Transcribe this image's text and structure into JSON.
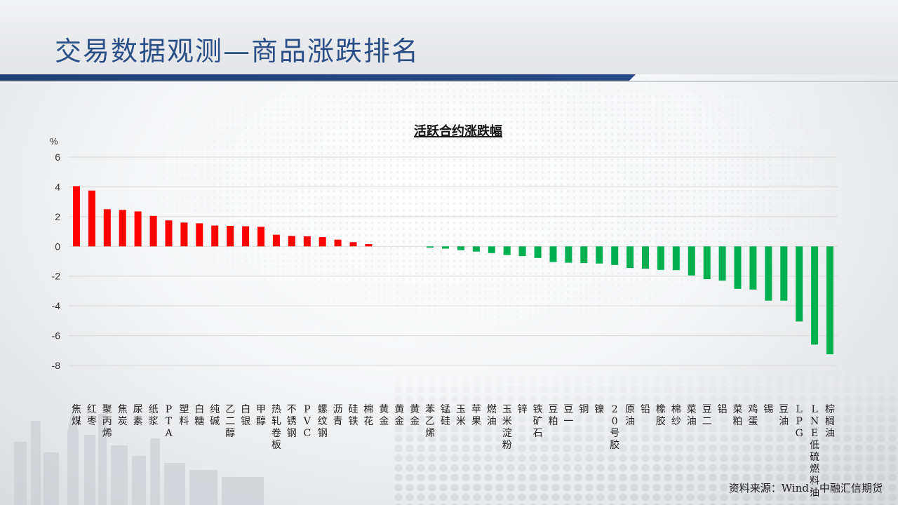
{
  "page": {
    "title": "交易数据观测—商品涨跌排名",
    "source": "资料来源：Wind，中融汇信期货"
  },
  "colors": {
    "up": "#ff0000",
    "down": "#00b050",
    "title": "#2a4f86",
    "grid": "#d9d9d9"
  },
  "chart_data": {
    "type": "bar",
    "title": "活跃合约涨跌幅",
    "unit_label": "%",
    "ylim": [
      -8,
      6
    ],
    "yticks": [
      6,
      4,
      2,
      0,
      -2,
      -4,
      -6,
      -8
    ],
    "grid": true,
    "legend": "none",
    "categories": [
      "焦煤",
      "红枣",
      "聚丙烯",
      "焦炭",
      "尿素",
      "纸浆",
      "PTA",
      "塑料",
      "白糖",
      "纯碱",
      "乙二醇",
      "白银",
      "甲醇",
      "热轧卷板",
      "不锈钢",
      "PVC",
      "螺纹钢",
      "沥青",
      "硅铁",
      "棉花",
      "黄金",
      "黄金",
      "黄金",
      "苯乙烯",
      "锰硅",
      "玉米",
      "苹果",
      "燃油",
      "玉米淀粉",
      "锌",
      "铁矿石",
      "豆粕",
      "豆一",
      "铜",
      "镍",
      "20号胶",
      "原油",
      "铅",
      "橡胶",
      "棉纱",
      "菜油",
      "豆二",
      "铝",
      "菜粕",
      "鸡蛋",
      "锡",
      "豆油",
      "LPG",
      "LNE低硫燃料油",
      "棕榈油"
    ],
    "values": [
      4.05,
      3.75,
      2.5,
      2.45,
      2.35,
      2.05,
      1.75,
      1.6,
      1.55,
      1.4,
      1.38,
      1.35,
      1.32,
      0.78,
      0.7,
      0.68,
      0.62,
      0.45,
      0.28,
      0.15,
      0,
      0,
      0,
      -0.08,
      -0.15,
      -0.25,
      -0.35,
      -0.45,
      -0.58,
      -0.65,
      -0.78,
      -1.05,
      -1.1,
      -1.12,
      -1.15,
      -1.25,
      -1.45,
      -1.5,
      -1.58,
      -1.6,
      -1.95,
      -2.2,
      -2.3,
      -2.85,
      -2.9,
      -3.65,
      -3.65,
      -5.05,
      -6.6,
      -7.25
    ]
  }
}
